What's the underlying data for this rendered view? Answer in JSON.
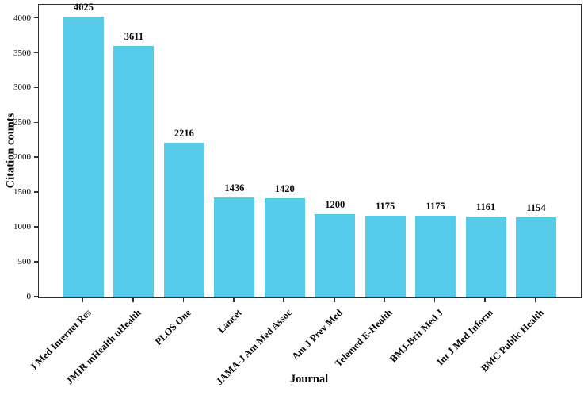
{
  "chart_data": {
    "type": "bar",
    "title": "",
    "xlabel": "Journal",
    "ylabel": "Citation counts",
    "categories": [
      "J Med Internet Res",
      "JMIR mHealth uHealth",
      "PLOS One",
      "Lancet",
      "JAMA-J Am Med Assoc",
      "Am J Prev Med",
      "Telemed E-Health",
      "BMJ-Brit Med J",
      "Int J Med Inform",
      "BMC Public Health"
    ],
    "values": [
      4025,
      3611,
      2216,
      1436,
      1420,
      1200,
      1175,
      1175,
      1161,
      1154
    ],
    "bar_labels": [
      "4025",
      "3611",
      "2216",
      "1436",
      "1420",
      "1200",
      "1175",
      "1175",
      "1161",
      "1154"
    ],
    "ylim": [
      0,
      4200
    ],
    "yticks": [
      0,
      500,
      1000,
      1500,
      2000,
      2500,
      3000,
      3500,
      4000
    ],
    "bar_color": "#55CBE9",
    "spine_color": "#2e2e2e",
    "grid": false,
    "legend": null
  }
}
